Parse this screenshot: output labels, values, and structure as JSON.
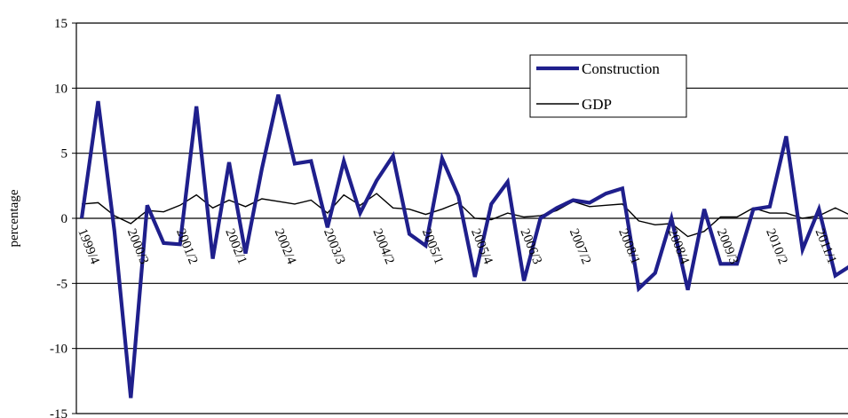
{
  "chart_data": {
    "type": "line",
    "ylabel": "percentage",
    "ylim": [
      -15,
      15
    ],
    "yticks": [
      15,
      10,
      5,
      0,
      -5,
      -10,
      -15
    ],
    "grid": true,
    "legend_position": "top-right",
    "x": [
      "1999/4",
      "2000/1",
      "2000/2",
      "2000/3",
      "2000/4",
      "2001/1",
      "2001/2",
      "2001/3",
      "2001/4",
      "2002/1",
      "2002/2",
      "2002/3",
      "2002/4",
      "2003/1",
      "2003/2",
      "2003/3",
      "2003/4",
      "2004/1",
      "2004/2",
      "2004/3",
      "2004/4",
      "2005/1",
      "2005/2",
      "2005/3",
      "2005/4",
      "2006/1",
      "2006/2",
      "2006/3",
      "2006/4",
      "2007/1",
      "2007/2",
      "2007/3",
      "2007/4",
      "2008/1",
      "2008/2",
      "2008/3",
      "2008/4",
      "2009/1",
      "2009/2",
      "2009/3",
      "2009/4",
      "2010/1",
      "2010/2",
      "2010/3",
      "2010/4",
      "2011/1",
      "2011/2",
      "2011/3"
    ],
    "xtick_labels": [
      "1999/4",
      "2000/3",
      "2001/2",
      "2002/1",
      "2002/4",
      "2003/3",
      "2004/2",
      "2005/1",
      "2005/4",
      "2006/3",
      "2007/2",
      "2008/1",
      "2008/4",
      "2009/3",
      "2010/2",
      "2011/1"
    ],
    "series": [
      {
        "name": "Construction",
        "color": "#1F1F8C",
        "values": [
          0.0,
          9.0,
          -1.0,
          -13.8,
          1.0,
          -1.9,
          -2.0,
          8.6,
          -3.1,
          4.3,
          -2.7,
          3.8,
          9.5,
          4.2,
          4.4,
          -0.7,
          4.4,
          0.4,
          2.9,
          4.8,
          -1.2,
          -2.1,
          4.6,
          1.7,
          -4.5,
          1.1,
          2.8,
          -4.8,
          0.0,
          0.8,
          1.4,
          1.2,
          1.9,
          2.3,
          -5.4,
          -4.2,
          0.0,
          -5.5,
          0.7,
          -3.5,
          -3.5,
          0.7,
          0.9,
          6.3,
          -2.4,
          0.7,
          -4.4,
          -3.6
        ]
      },
      {
        "name": "GDP",
        "color": "#000000",
        "values": [
          1.1,
          1.2,
          0.2,
          -0.4,
          0.6,
          0.5,
          1.0,
          1.8,
          0.8,
          1.4,
          0.9,
          1.5,
          1.3,
          1.1,
          1.4,
          0.4,
          1.8,
          1.0,
          1.9,
          0.8,
          0.7,
          0.3,
          0.7,
          1.2,
          0.0,
          -0.1,
          0.4,
          0.1,
          0.2,
          0.6,
          1.3,
          0.9,
          1.0,
          1.1,
          -0.2,
          -0.5,
          -0.4,
          -1.4,
          -1.0,
          0.1,
          0.1,
          0.8,
          0.4,
          0.4,
          0.0,
          0.2,
          0.8,
          0.2
        ]
      }
    ]
  }
}
